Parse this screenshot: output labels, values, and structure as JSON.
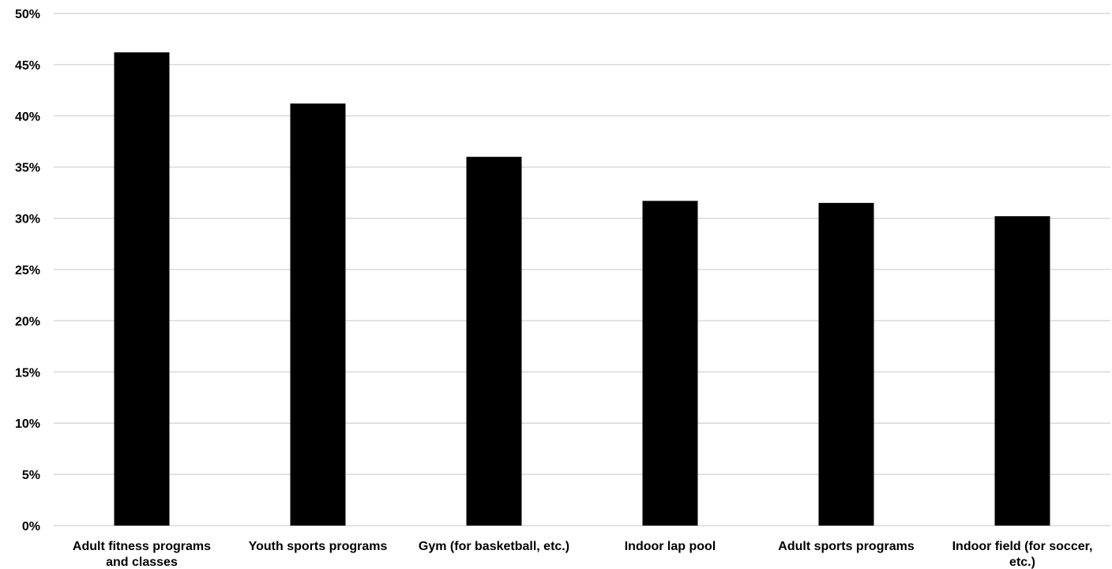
{
  "chart_data": {
    "type": "bar",
    "title": "",
    "xlabel": "",
    "ylabel": "",
    "categories": [
      "Adult fitness programs and classes",
      "Youth sports programs",
      "Gym (for basketball, etc.)",
      "Indoor lap pool",
      "Adult sports programs",
      "Indoor field (for soccer, etc.)"
    ],
    "category_lines": [
      [
        "Adult fitness programs",
        "and classes"
      ],
      [
        "Youth sports programs"
      ],
      [
        "Gym (for basketball, etc.)"
      ],
      [
        "Indoor lap pool"
      ],
      [
        "Adult sports programs"
      ],
      [
        "Indoor field (for soccer,",
        "etc.)"
      ]
    ],
    "values": [
      46.2,
      41.2,
      36.0,
      31.7,
      31.5,
      30.2
    ],
    "ylim": [
      0,
      50
    ],
    "yticks": [
      0,
      5,
      10,
      15,
      20,
      25,
      30,
      35,
      40,
      45,
      50
    ],
    "ytick_labels": [
      "0%",
      "5%",
      "10%",
      "15%",
      "20%",
      "25%",
      "30%",
      "35%",
      "40%",
      "45%",
      "50%"
    ],
    "grid": true,
    "legend": "none",
    "bar_color": "#000000",
    "grid_color": "#d9d9d9"
  }
}
